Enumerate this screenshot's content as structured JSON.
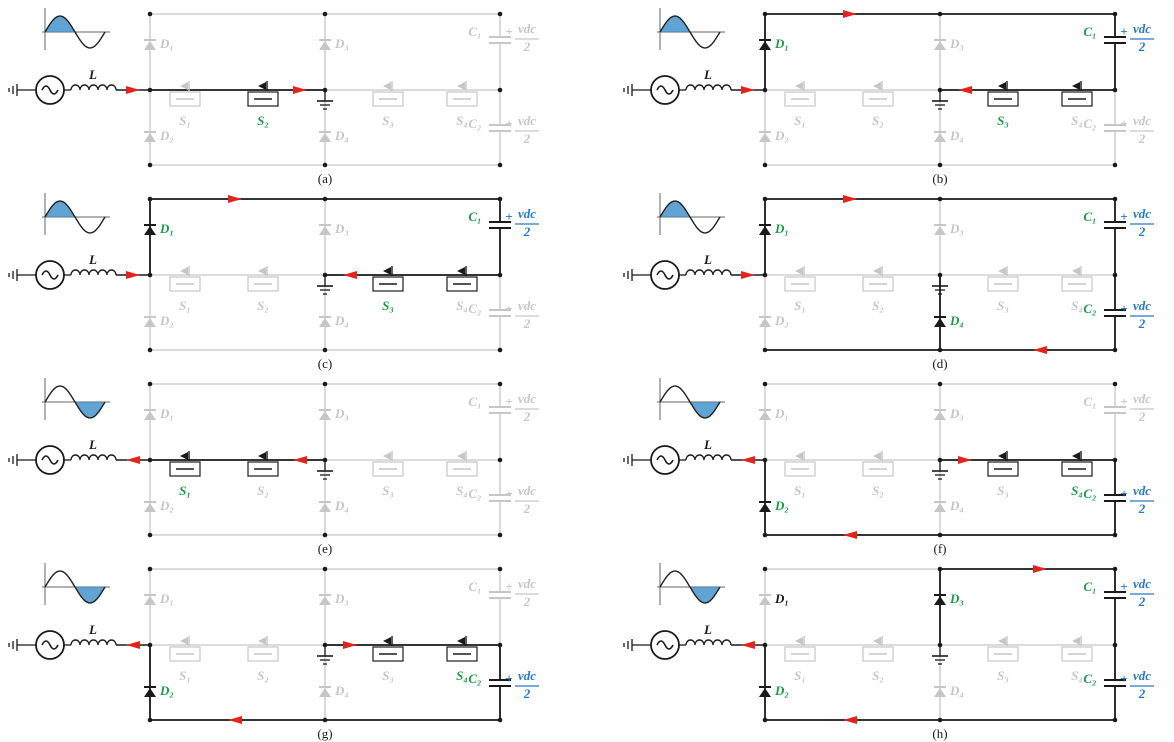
{
  "panels": [
    {
      "caption": "(a)",
      "labels": [
        "L",
        "D₁",
        "D₂",
        "D₃",
        "D₄",
        "S₁",
        "S₂",
        "S₃",
        "S₄",
        "C₁",
        "+",
        "vdc",
        "2",
        "C₂",
        "+",
        "vdc",
        "2"
      ]
    },
    {
      "caption": "(b)",
      "labels": [
        "L",
        "D₁",
        "D₂",
        "D₃",
        "D₄",
        "S₁",
        "S₂",
        "S₃",
        "S₄",
        "C₁",
        "+",
        "vdc",
        "2",
        "C₂",
        "+",
        "vdc",
        "2"
      ]
    },
    {
      "caption": "(c)",
      "labels": [
        "L",
        "D₁",
        "D₂",
        "D₃",
        "D₄",
        "S₁",
        "S₂",
        "S₃",
        "S₄",
        "C₁",
        "+",
        "vdc",
        "2",
        "C₂",
        "+",
        "vdc",
        "2"
      ]
    },
    {
      "caption": "(d)",
      "labels": [
        "L",
        "D₁",
        "D₂",
        "D₃",
        "D₄",
        "S₁",
        "S₂",
        "S₃",
        "S₄",
        "C₁",
        "+",
        "vdc",
        "2",
        "C₂",
        "+",
        "vdc",
        "2"
      ]
    },
    {
      "caption": "(e)",
      "labels": [
        "L",
        "D₁",
        "D₂",
        "D₃",
        "D₄",
        "S₁",
        "S₂",
        "S₃",
        "S₄",
        "C₁",
        "+",
        "vdc",
        "2",
        "C₂",
        "+",
        "vdc",
        "2"
      ]
    },
    {
      "caption": "(f)",
      "labels": [
        "L",
        "D₁",
        "D₂",
        "D₃",
        "D₄",
        "S₁",
        "S₂",
        "S₃",
        "S₄",
        "C₁",
        "+",
        "vdc",
        "2",
        "C₂",
        "+",
        "vdc",
        "2"
      ]
    },
    {
      "caption": "(g)",
      "labels": [
        "L",
        "D₁",
        "D₂",
        "D₃",
        "D₄",
        "S₁",
        "S₂",
        "S₃",
        "S₄",
        "C₁",
        "+",
        "vdc",
        "2",
        "C₂",
        "+",
        "vdc",
        "2"
      ]
    },
    {
      "caption": "(h)",
      "labels": [
        "L",
        "D₁",
        "D₂",
        "D₃",
        "D₄",
        "S₁",
        "S₂",
        "S₃",
        "S₄",
        "C₁",
        "+",
        "vdc",
        "2",
        "C₂",
        "+",
        "vdc",
        "2"
      ]
    }
  ]
}
